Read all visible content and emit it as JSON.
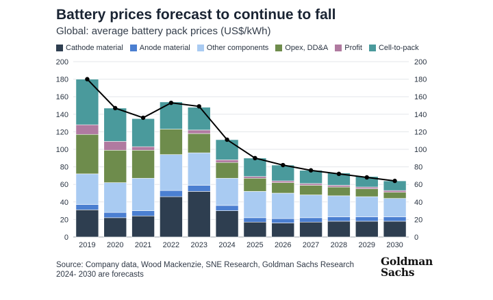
{
  "header": {
    "title": "Battery prices forecast to continue to fall",
    "subtitle": "Global: average battery pack prices (US$/kWh)"
  },
  "footer": {
    "source": "Source: Company data, Wood Mackenzie, SNE Research, Goldman Sachs Research",
    "note": "2024- 2030 are forecasts",
    "logo_line1": "Goldman",
    "logo_line2": "Sachs"
  },
  "chart_data": {
    "type": "bar",
    "stacked": true,
    "title": "Battery prices forecast to continue to fall",
    "subtitle": "Global: average battery pack prices (US$/kWh)",
    "xlabel": "",
    "ylabel": "",
    "ylim": [
      0,
      200
    ],
    "yticks": [
      0,
      20,
      40,
      60,
      80,
      100,
      120,
      140,
      160,
      180,
      200
    ],
    "grid": true,
    "legend_position": "top",
    "categories": [
      "2019",
      "2020",
      "2021",
      "2022",
      "2023",
      "2024",
      "2025",
      "2026",
      "2027",
      "2028",
      "2029",
      "2030"
    ],
    "series": [
      {
        "name": "Cathode material",
        "color": "#2e3e50",
        "values": [
          31,
          22,
          24,
          46,
          52,
          30,
          17,
          16,
          17,
          18,
          18,
          18
        ]
      },
      {
        "name": "Anode material",
        "color": "#4b7fd1",
        "values": [
          6,
          6,
          6,
          7,
          7,
          6,
          5,
          5,
          5,
          5,
          5,
          5
        ]
      },
      {
        "name": "Other components",
        "color": "#a9cbf2",
        "values": [
          35,
          34,
          37,
          41,
          37,
          31,
          30,
          29,
          26,
          24,
          23,
          21
        ]
      },
      {
        "name": "Opex, DD&A",
        "color": "#6e8c4c",
        "values": [
          45,
          37,
          32,
          29,
          22,
          18,
          15,
          12,
          11,
          10,
          9,
          7
        ]
      },
      {
        "name": "Profit",
        "color": "#b07aa0",
        "values": [
          11,
          10,
          4,
          0,
          4,
          3,
          2,
          2,
          2,
          2,
          2,
          2
        ]
      },
      {
        "name": "Cell-to-pack",
        "color": "#4a9a9c",
        "values": [
          52,
          38,
          32,
          31,
          26,
          23,
          21,
          18,
          15,
          14,
          12,
          11
        ]
      }
    ],
    "line": {
      "name": "Total",
      "color": "#000000",
      "values": [
        180,
        147,
        136,
        153,
        149,
        111,
        90,
        82,
        76,
        72,
        68,
        64
      ]
    }
  }
}
